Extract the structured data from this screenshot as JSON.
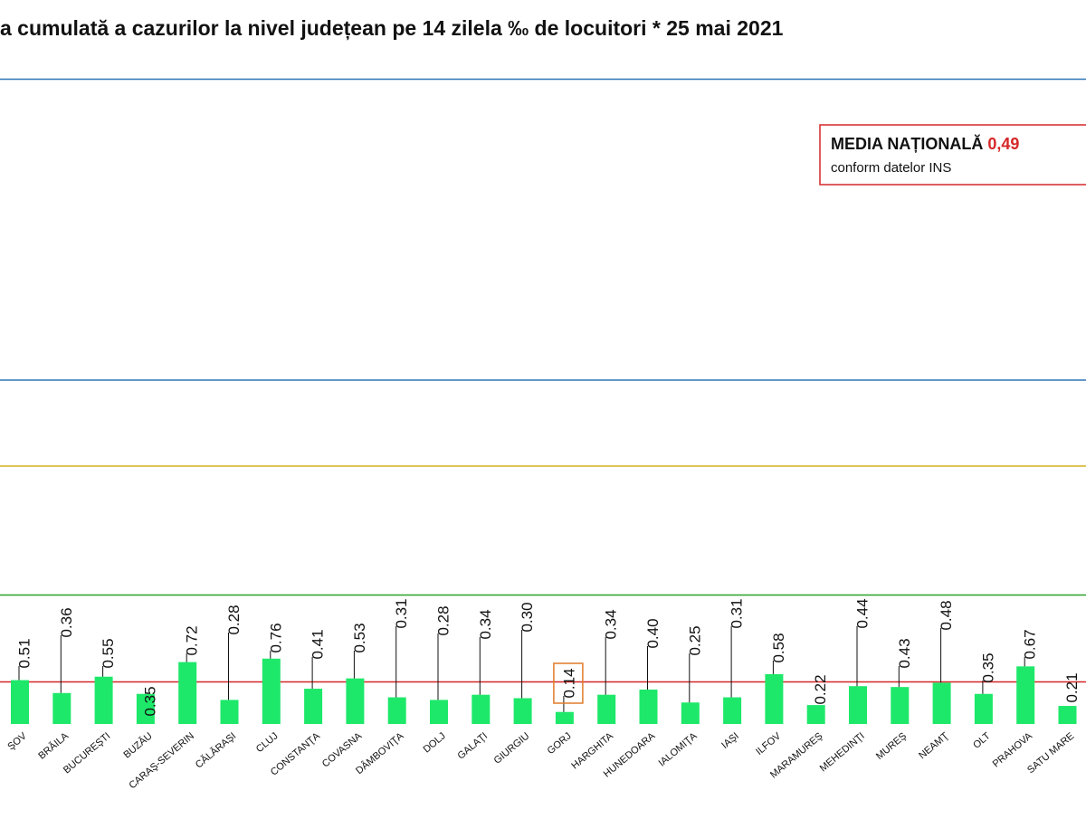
{
  "chart_data": {
    "type": "bar",
    "title": "a cumulată a cazurilor la nivel județean pe 14 zilela ‰ de locuitori *  25 mai 2021",
    "categories": [
      "ŞOV",
      "BRĂILA",
      "BUCUREŞTI",
      "BUZĂU",
      "CARAŞ-SEVERIN",
      "CĂLĂRAŞI",
      "CLUJ",
      "CONSTANŢA",
      "COVASNA",
      "DÂMBOVIŢA",
      "DOLJ",
      "GALAŢI",
      "GIURGIU",
      "GORJ",
      "HARGHITA",
      "HUNEDOARA",
      "IALOMIŢA",
      "IAŞI",
      "ILFOV",
      "MARAMUREŞ",
      "MEHEDINŢI",
      "MUREŞ",
      "NEAMŢ",
      "OLT",
      "PRAHOVA",
      "SATU MARE"
    ],
    "values": [
      0.51,
      0.36,
      0.55,
      0.35,
      0.72,
      0.28,
      0.76,
      0.41,
      0.53,
      0.31,
      0.28,
      0.34,
      0.3,
      0.14,
      0.34,
      0.4,
      0.25,
      0.31,
      0.58,
      0.22,
      0.44,
      0.43,
      0.48,
      0.35,
      0.67,
      0.21
    ],
    "value_labels": [
      "0.51",
      "0.36",
      "0.55",
      "0.35",
      "0.72",
      "0.28",
      "0.76",
      "0.41",
      "0.53",
      "0.31",
      "0.28",
      "0.34",
      "0.30",
      "0.14",
      "0.34",
      "0.40",
      "0.25",
      "0.31",
      "0.58",
      "0.22",
      "0.44",
      "0.43",
      "0.48",
      "0.35",
      "0.67",
      "0.21"
    ],
    "color": "#1ee86a",
    "ylim": [
      0,
      8
    ],
    "reference_lines": [
      {
        "value": 1.5,
        "color": "#2ca02c"
      },
      {
        "value": 3,
        "color": "#d4b020"
      },
      {
        "value": 4,
        "color": "#2e75b6"
      },
      {
        "value": 7.5,
        "color": "#2e75b6"
      }
    ],
    "national_average": {
      "label": "MEDIA NAȚIONALĂ",
      "value": 0.49,
      "value_label": "0,49",
      "note": "conform datelor INS",
      "color": "#d62728"
    }
  }
}
